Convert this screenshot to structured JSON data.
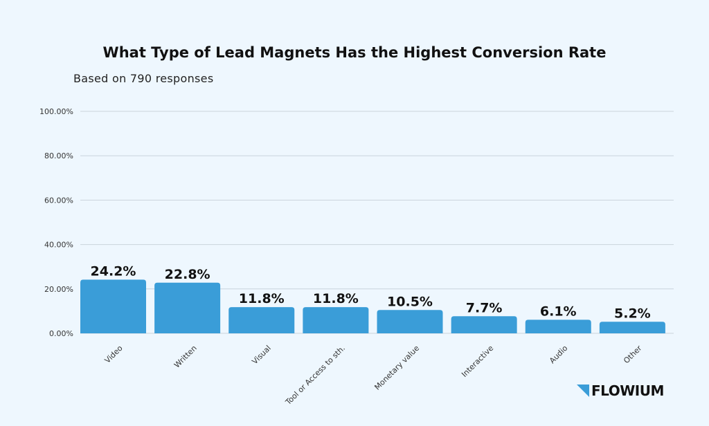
{
  "chart_data": {
    "type": "bar",
    "title": "What Type of Lead Magnets Has the Highest Conversion Rate",
    "subtitle": "Based on 790 responses",
    "categories": [
      "Video",
      "Written",
      "Visual",
      "Tool or Access to sth.",
      "Monetary value",
      "Interactive",
      "Audio",
      "Other"
    ],
    "values": [
      24.2,
      22.8,
      11.8,
      11.8,
      10.5,
      7.7,
      6.1,
      5.2
    ],
    "data_labels": [
      "24.2%",
      "22.8%",
      "11.8%",
      "11.8%",
      "10.5%",
      "7.7%",
      "6.1%",
      "5.2%"
    ],
    "ylim": [
      0,
      100
    ],
    "yticks": [
      0,
      20,
      40,
      60,
      80,
      100
    ],
    "ytick_labels": [
      "0.00%",
      "20.00%",
      "40.00%",
      "60.00%",
      "80.00%",
      "100.00%"
    ],
    "xlabel": "",
    "ylabel": "",
    "grid": true,
    "legend": "none",
    "bar_color": "#3a9dd8"
  },
  "brand": {
    "logo_text": "FLOWIUM",
    "logo_color": "#3a9dd8"
  }
}
